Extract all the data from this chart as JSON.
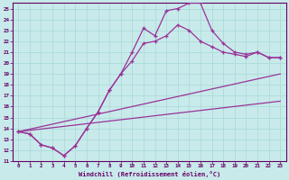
{
  "xlabel": "Windchill (Refroidissement éolien,°C)",
  "bg_color": "#c8eaea",
  "line_color": "#993399",
  "grid_color": "#a8d8d8",
  "xlim": [
    -0.5,
    23.5
  ],
  "ylim": [
    11,
    25.5
  ],
  "xticks": [
    0,
    1,
    2,
    3,
    4,
    5,
    6,
    7,
    8,
    9,
    10,
    11,
    12,
    13,
    14,
    15,
    16,
    17,
    18,
    19,
    20,
    21,
    22,
    23
  ],
  "yticks": [
    11,
    12,
    13,
    14,
    15,
    16,
    17,
    18,
    19,
    20,
    21,
    22,
    23,
    24,
    25
  ],
  "curve1_x": [
    0,
    1,
    2,
    3,
    4,
    5,
    6,
    7,
    8,
    9,
    10,
    11,
    12,
    13,
    14,
    15,
    16,
    17,
    18,
    19,
    20,
    21,
    22,
    23
  ],
  "curve1_y": [
    13.7,
    13.5,
    12.5,
    12.2,
    11.5,
    12.4,
    14.0,
    15.5,
    17.5,
    19.0,
    20.2,
    21.8,
    22.0,
    22.5,
    23.5,
    23.0,
    22.0,
    21.5,
    21.0,
    20.8,
    20.6,
    21.0,
    20.5,
    20.5
  ],
  "curve2_x": [
    0,
    1,
    2,
    3,
    4,
    5,
    6,
    7,
    8,
    9,
    10,
    11,
    12,
    13,
    14,
    15,
    16,
    17,
    18,
    19,
    20,
    21,
    22,
    23
  ],
  "curve2_y": [
    13.7,
    13.5,
    12.5,
    12.2,
    11.5,
    12.4,
    14.0,
    15.5,
    17.5,
    19.0,
    21.0,
    23.2,
    22.5,
    24.8,
    25.0,
    25.5,
    25.5,
    23.0,
    21.8,
    21.0,
    20.8,
    21.0,
    20.5,
    20.5
  ],
  "line3_x": [
    0,
    23
  ],
  "line3_y": [
    13.7,
    16.5
  ],
  "line4_x": [
    0,
    23
  ],
  "line4_y": [
    13.7,
    19.0
  ]
}
